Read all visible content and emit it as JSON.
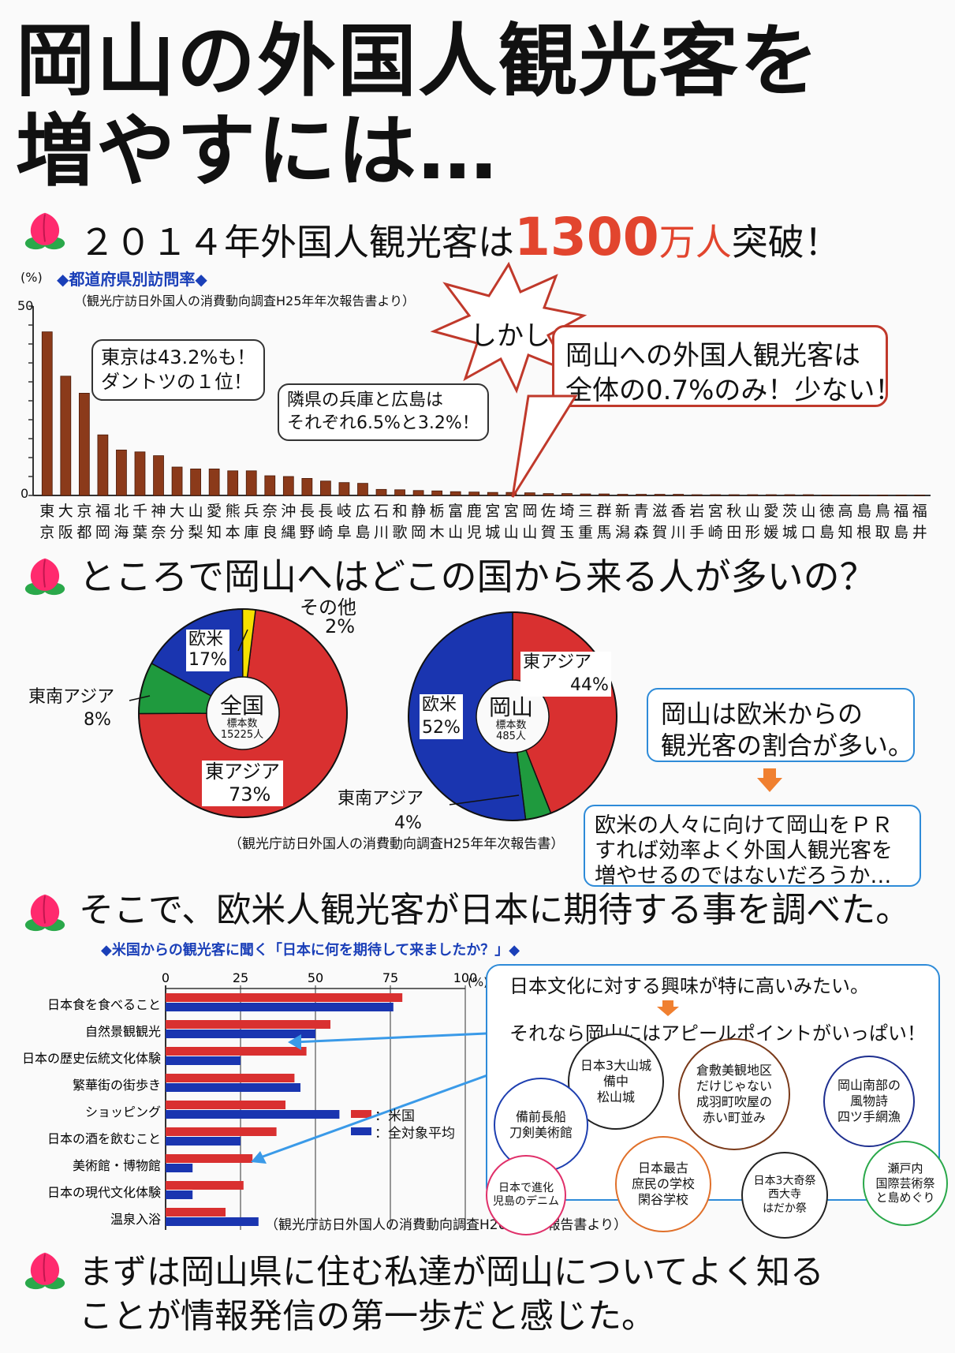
{
  "title": {
    "line1": "岡山の外国人観光客を",
    "line2": "増やすには…"
  },
  "section1": {
    "heading_prefix": "２０１４年外国人観光客は",
    "heading_number": "1300",
    "heading_suffix": "万人突破！",
    "chart_title": "◆都道府県別訪問率◆",
    "chart_source": "（観光庁訪日外国人の消費動向調査H25年年次報告書より）",
    "y_unit": "(%)",
    "y_max_label": "50",
    "y_zero_label": "0",
    "bubble_tokyo_1": "東京は43.2%も！",
    "bubble_tokyo_2": "ダントツの１位！",
    "bubble_neighbor_1": "隣県の兵庫と広島は",
    "bubble_neighbor_2": "それぞれ6.5%と3.2%！",
    "shikashi": "しかし",
    "okayama_1": "岡山への外国人観光客は",
    "okayama_2": "全体の0.7%のみ！少ない！"
  },
  "chart_data": [
    {
      "type": "bar",
      "ylabel": "(%)",
      "ylim": [
        0,
        50
      ],
      "categories": [
        "東京",
        "大阪",
        "京都",
        "福岡",
        "北海道",
        "千葉",
        "神奈川",
        "大分",
        "山梨",
        "愛知",
        "熊本",
        "兵庫",
        "奈良",
        "沖縄",
        "長野",
        "長崎",
        "岐阜",
        "広島",
        "石川",
        "和歌山",
        "静岡",
        "栃木",
        "富山",
        "鹿児島",
        "宮城",
        "宮山",
        "岡山",
        "佐賀",
        "埼玉",
        "三重",
        "群馬",
        "新潟",
        "青森",
        "滋賀",
        "香川",
        "岩手",
        "宮崎",
        "秋田",
        "山形",
        "愛媛",
        "茨城",
        "山口",
        "徳島",
        "高知",
        "島根",
        "鳥取",
        "福島",
        "福井"
      ],
      "values": [
        43.2,
        31.5,
        27.0,
        16.0,
        12.0,
        11.5,
        10.5,
        7.5,
        7.0,
        7.0,
        6.5,
        6.5,
        5.2,
        5.0,
        4.5,
        3.8,
        3.4,
        3.2,
        1.6,
        1.5,
        1.3,
        1.2,
        1.0,
        0.9,
        0.8,
        0.8,
        0.7,
        0.5,
        0.5,
        0.4,
        0.4,
        0.3,
        0.3,
        0.3,
        0.3,
        0.2,
        0.2,
        0.2,
        0.2,
        0.2,
        0.2,
        0.2,
        0.1,
        0.1,
        0.1,
        0.1,
        0.1,
        0.1
      ],
      "color": "#8b3a1a"
    },
    {
      "type": "pie",
      "title": "全国",
      "subtitle": "標本数 15225人",
      "slices": [
        {
          "label": "東アジア",
          "value": 73,
          "color": "#d93030"
        },
        {
          "label": "東南アジア",
          "value": 8,
          "color": "#1f9a3e"
        },
        {
          "label": "欧米",
          "value": 17,
          "color": "#1a35b0"
        },
        {
          "label": "その他",
          "value": 2,
          "color": "#f5e000"
        }
      ]
    },
    {
      "type": "pie",
      "title": "岡山",
      "subtitle": "標本数 485人",
      "slices": [
        {
          "label": "東アジア",
          "value": 44,
          "color": "#d93030"
        },
        {
          "label": "東南アジア",
          "value": 4,
          "color": "#1f9a3e"
        },
        {
          "label": "欧米",
          "value": 52,
          "color": "#1a35b0"
        }
      ]
    },
    {
      "type": "bar",
      "orientation": "horizontal",
      "title": "◆米国からの観光客に聞く「日本に何を期待して来ましたか？」◆",
      "xlim": [
        0,
        100
      ],
      "categories": [
        "日本食を食べること",
        "自然景観観光",
        "日本の歴史伝統文化体験",
        "繁華街の街歩き",
        "ショッピング",
        "日本の酒を飲むこと",
        "美術館・博物館",
        "日本の現代文化体験",
        "温泉入浴"
      ],
      "series": [
        {
          "name": "米国",
          "color": "#d93030",
          "values": [
            79,
            55,
            47,
            43,
            40,
            37,
            29,
            26,
            20
          ]
        },
        {
          "name": "全対象平均",
          "color": "#1a35b0",
          "values": [
            76,
            50,
            25,
            45,
            58,
            25,
            9,
            9,
            31
          ]
        }
      ]
    }
  ],
  "section2": {
    "heading": "ところで岡山へはどこの国から来る人が多いの？",
    "zenkoku": {
      "title": "全国",
      "sample_label": "標本数",
      "sample": "15225人",
      "east_asia": "東アジア",
      "east_asia_pct": "73%",
      "sea": "東南アジア",
      "sea_pct": "8%",
      "west": "欧米",
      "west_pct": "17%",
      "other": "その他",
      "other_pct": "2%"
    },
    "okayama": {
      "title": "岡山",
      "sample_label": "標本数",
      "sample": "485人",
      "east_asia": "東アジア",
      "east_asia_pct": "44%",
      "sea": "東南アジア",
      "sea_pct": "4%",
      "west": "欧米",
      "west_pct": "52%"
    },
    "source": "（観光庁訪日外国人の消費動向調査H25年年次報告書）",
    "box1_1": "岡山は欧米からの",
    "box1_2": "観光客の割合が多い。",
    "box2_1": "欧米の人々に向けて岡山をＰＲ",
    "box2_2": "すれば効率よく外国人観光客を",
    "box2_3": "増やせるのではないだろうか…"
  },
  "section3": {
    "heading": "そこで、欧米人観光客が日本に期待する事を調べた。",
    "chart_title": "◆米国からの観光客に聞く「日本に何を期待して来ましたか？」◆",
    "ticks": [
      "0",
      "25",
      "50",
      "75",
      "100"
    ],
    "unit": "(%)",
    "legend_us": "：米国",
    "legend_avg": "：全対象平均",
    "source": "（観光庁訪日外国人の消費動向調査H26年年次報告書より）",
    "panel_1": "日本文化に対する興味が特に高いみたい。",
    "panel_2": "それなら岡山にはアピールポイントがいっぱい！",
    "spots": [
      "日本3大山城\n備中\n松山城",
      "備前長船\n刀剣美術館",
      "倉敷美観地区\nだけじゃない\n成羽町吹屋の\n赤い町並み",
      "岡山南部の\n風物詩\n四ツ手網漁",
      "日本最古\n庶民の学校\n閑谷学校",
      "日本で進化\n児島のデニム",
      "日本3大奇祭\n西大寺\nはだか祭",
      "瀬戸内\n国際芸術祭\nと島めぐり"
    ]
  },
  "conclusion": {
    "line1": "まずは岡山県に住む私達が岡山についてよく知る",
    "line2": "ことが情報発信の第一歩だと感じた。"
  }
}
